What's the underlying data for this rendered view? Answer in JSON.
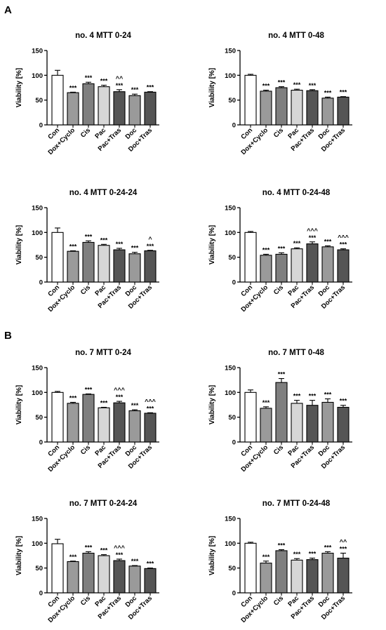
{
  "panels": [
    {
      "label": "A"
    },
    {
      "label": "B"
    }
  ],
  "bar_colors": [
    "#ffffff",
    "#9a9a9a",
    "#7f7f7f",
    "#d6d6d6",
    "#555555",
    "#9a9a9a",
    "#555555"
  ],
  "chart_data": [
    {
      "type": "bar",
      "title": "no. 4 MTT 0-24",
      "ylabel": "Viability [%]",
      "xlabel": "",
      "ylim": [
        0,
        150
      ],
      "yticks": [
        0,
        50,
        100,
        150
      ],
      "grid": false,
      "legend": "none",
      "categories": [
        "Con",
        "Dox+Cyclo",
        "Cis",
        "Pac",
        "Pac+Tras",
        "Doc",
        "Doc+Tras"
      ],
      "values": [
        100,
        65,
        83,
        77,
        67,
        59,
        66
      ],
      "errors": [
        10,
        1,
        3,
        3,
        4,
        3,
        1
      ],
      "annotations": [
        [],
        [
          "***"
        ],
        [
          "***"
        ],
        [
          "***"
        ],
        [
          "^^",
          "***"
        ],
        [
          "***"
        ],
        [
          "***"
        ]
      ]
    },
    {
      "type": "bar",
      "title": "no. 4 MTT 0-48",
      "ylabel": "Viability [%]",
      "xlabel": "",
      "ylim": [
        0,
        150
      ],
      "yticks": [
        0,
        50,
        100,
        150
      ],
      "grid": false,
      "legend": "none",
      "categories": [
        "Con",
        "Dox+Cyclo",
        "Cis",
        "Pac",
        "Pac+Tras",
        "Doc",
        "Doc+Tras"
      ],
      "values": [
        100,
        68,
        75,
        70,
        69,
        54,
        56
      ],
      "errors": [
        2,
        2,
        2,
        2,
        2,
        2,
        1
      ],
      "annotations": [
        [],
        [
          "***"
        ],
        [
          "***"
        ],
        [
          "***"
        ],
        [
          "***"
        ],
        [
          "***"
        ],
        [
          "***"
        ]
      ]
    },
    {
      "type": "bar",
      "title": "no. 4 MTT 0-24-24",
      "ylabel": "Viability [%]",
      "xlabel": "",
      "ylim": [
        0,
        150
      ],
      "yticks": [
        0,
        50,
        100,
        150
      ],
      "grid": false,
      "legend": "none",
      "categories": [
        "Con",
        "Dox+Cyclo",
        "Cis",
        "Pac",
        "Pac+Tras",
        "Doc",
        "Doc+Tras"
      ],
      "values": [
        100,
        62,
        80,
        74,
        65,
        57,
        63
      ],
      "errors": [
        9,
        1,
        3,
        2,
        3,
        3,
        1
      ],
      "annotations": [
        [],
        [
          "***"
        ],
        [
          "***"
        ],
        [
          "***"
        ],
        [
          "***"
        ],
        [
          "***"
        ],
        [
          "^",
          "***"
        ]
      ]
    },
    {
      "type": "bar",
      "title": "no. 4 MTT 0-24-48",
      "ylabel": "Viability [%]",
      "xlabel": "",
      "ylim": [
        0,
        150
      ],
      "yticks": [
        0,
        50,
        100,
        150
      ],
      "grid": false,
      "legend": "none",
      "categories": [
        "Con",
        "Dox+Cyclo",
        "Cis",
        "Pac",
        "Pac+Tras",
        "Doc",
        "Doc+Tras"
      ],
      "values": [
        100,
        54,
        56,
        67,
        77,
        71,
        65
      ],
      "errors": [
        2,
        2,
        3,
        2,
        4,
        2,
        2
      ],
      "annotations": [
        [],
        [
          "***"
        ],
        [
          "***"
        ],
        [
          "***"
        ],
        [
          "^^^",
          "***"
        ],
        [
          "***"
        ],
        [
          "^^^",
          "***"
        ]
      ]
    },
    {
      "type": "bar",
      "title": "no. 7 MTT 0-24",
      "ylabel": "Viability [%]",
      "xlabel": "",
      "ylim": [
        0,
        150
      ],
      "yticks": [
        0,
        50,
        100,
        150
      ],
      "grid": false,
      "legend": "none",
      "categories": [
        "Con",
        "Dox+Cyclo",
        "Cis",
        "Pac",
        "Pac+Tras",
        "Doc",
        "Doc+Tras"
      ],
      "values": [
        100,
        78,
        96,
        69,
        79,
        63,
        58
      ],
      "errors": [
        2,
        2,
        1,
        1,
        3,
        2,
        1
      ],
      "annotations": [
        [],
        [
          "***"
        ],
        [
          "***"
        ],
        [
          "***"
        ],
        [
          "^^^",
          "***"
        ],
        [
          "***"
        ],
        [
          "^^^",
          "***"
        ]
      ]
    },
    {
      "type": "bar",
      "title": "no. 7 MTT 0-48",
      "ylabel": "Viability [%]",
      "xlabel": "",
      "ylim": [
        0,
        150
      ],
      "yticks": [
        0,
        50,
        100,
        150
      ],
      "grid": false,
      "legend": "none",
      "categories": [
        "Con",
        "Dox+Cyclo",
        "Cis",
        "Pac",
        "Pac+Tras",
        "Doc",
        "Doc+Tras"
      ],
      "values": [
        100,
        68,
        120,
        78,
        74,
        80,
        70
      ],
      "errors": [
        5,
        3,
        8,
        6,
        10,
        7,
        4
      ],
      "annotations": [
        [],
        [
          "***"
        ],
        [
          "***"
        ],
        [
          "***"
        ],
        [
          "***"
        ],
        [
          "***"
        ],
        [
          "***"
        ]
      ]
    },
    {
      "type": "bar",
      "title": "no. 7 MTT 0-24-24",
      "ylabel": "Viability [%]",
      "xlabel": "",
      "ylim": [
        0,
        150
      ],
      "yticks": [
        0,
        50,
        100,
        150
      ],
      "grid": false,
      "legend": "none",
      "categories": [
        "Con",
        "Dox+Cyclo",
        "Cis",
        "Pac",
        "Pac+Tras",
        "Doc",
        "Doc+Tras"
      ],
      "values": [
        99,
        63,
        80,
        75,
        65,
        54,
        49
      ],
      "errors": [
        9,
        1,
        3,
        2,
        3,
        1,
        1
      ],
      "annotations": [
        [],
        [
          "***"
        ],
        [
          "***"
        ],
        [
          "***"
        ],
        [
          "^^^",
          "***"
        ],
        [
          "***"
        ],
        [
          "***"
        ]
      ]
    },
    {
      "type": "bar",
      "title": "no. 7 MTT 0-24-48",
      "ylabel": "Viability [%]",
      "xlabel": "",
      "ylim": [
        0,
        150
      ],
      "yticks": [
        0,
        50,
        100,
        150
      ],
      "grid": false,
      "legend": "none",
      "categories": [
        "Con",
        "Dox+Cyclo",
        "Cis",
        "Pac",
        "Pac+Tras",
        "Doc",
        "Doc+Tras"
      ],
      "values": [
        100,
        60,
        85,
        66,
        67,
        80,
        70
      ],
      "errors": [
        2,
        4,
        2,
        3,
        3,
        3,
        10
      ],
      "annotations": [
        [],
        [
          "***"
        ],
        [
          "***"
        ],
        [
          "***"
        ],
        [
          "***"
        ],
        [
          "***"
        ],
        [
          "^^",
          "***"
        ]
      ]
    }
  ]
}
